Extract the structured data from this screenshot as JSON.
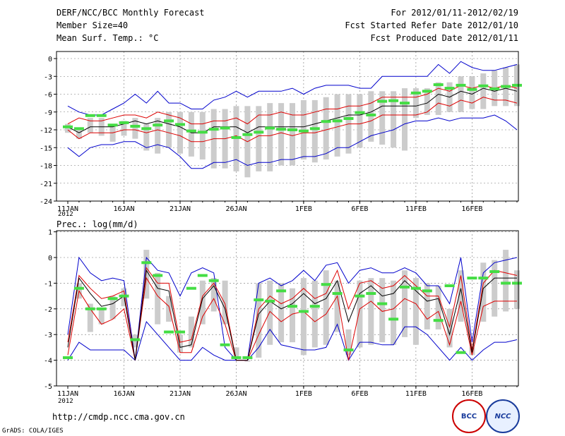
{
  "header": {
    "left": [
      "DERF/NCC/BCC Monthly Forecast",
      "Member Size=40",
      "Mean Surf. Temp.: °C"
    ],
    "right": [
      "For 2012/01/11-2012/02/19",
      "Fcst Started Refer Date 2012/01/10",
      "Fcst Produced Date 2012/01/11"
    ]
  },
  "footer": {
    "url": "http://cmdp.ncc.cma.gov.cn",
    "credit": "GrADS: COLA/IGES",
    "logo_bcc": "BCC",
    "logo_ncc": "NCC"
  },
  "colors": {
    "envelope": "#0000cc",
    "band": "#dd0000",
    "mean": "#000000",
    "box": "#cccccc",
    "obs": "#44dd44"
  },
  "chart_data": [
    {
      "type": "line",
      "name": "temperature",
      "title": "Mean Surf. Temp.: °C",
      "ylim": [
        -24,
        1
      ],
      "yticks": [
        0,
        -3,
        -6,
        -9,
        -12,
        -15,
        -18,
        -21,
        -24
      ],
      "xticks": [
        {
          "day": 0,
          "label": "11JAN"
        },
        {
          "day": 5,
          "label": "16JAN"
        },
        {
          "day": 10,
          "label": "21JAN"
        },
        {
          "day": 15,
          "label": "26JAN"
        },
        {
          "day": 21,
          "label": "1FEB"
        },
        {
          "day": 26,
          "label": "6FEB"
        },
        {
          "day": 31,
          "label": "11FEB"
        },
        {
          "day": 36,
          "label": "16FEB"
        }
      ],
      "year_label": "2012",
      "max": [
        -8,
        -9,
        -9.5,
        -9.5,
        -8.5,
        -7.5,
        -6,
        -7.5,
        -5.5,
        -7.5,
        -7.5,
        -8.5,
        -8.5,
        -7,
        -6.5,
        -5.5,
        -6.5,
        -5.5,
        -5.5,
        -5.5,
        -5,
        -6,
        -5,
        -4.5,
        -4.5,
        -4.5,
        -5,
        -5,
        -3,
        -3,
        -3,
        -3,
        -3,
        -1,
        -2.5,
        -0.5,
        -1.5,
        -2,
        -2,
        -1.5,
        -1
      ],
      "upper": [
        -11,
        -10,
        -10.5,
        -10.5,
        -10,
        -9.5,
        -9.5,
        -10,
        -9,
        -9.5,
        -10,
        -11,
        -11,
        -10.5,
        -10.5,
        -10,
        -11,
        -9.5,
        -9.5,
        -9,
        -9.5,
        -9.5,
        -9,
        -8.5,
        -8.5,
        -8,
        -8,
        -7.5,
        -6.5,
        -6.5,
        -6.5,
        -6.5,
        -6,
        -5,
        -5.5,
        -4.5,
        -5,
        -4.5,
        -5,
        -4.5,
        -5
      ],
      "mean": [
        -11.5,
        -12.5,
        -11.5,
        -11.5,
        -11.5,
        -11,
        -10.5,
        -11,
        -10.5,
        -11,
        -11.5,
        -12.5,
        -12.5,
        -11.5,
        -11.5,
        -11.5,
        -12.5,
        -11.5,
        -11.5,
        -11.5,
        -11.5,
        -11.5,
        -11,
        -10.5,
        -10,
        -9.5,
        -9.5,
        -9,
        -8,
        -8,
        -8,
        -8,
        -7.5,
        -6,
        -6.5,
        -5.5,
        -6,
        -5,
        -5.5,
        -5,
        -5.5
      ],
      "lower": [
        -12,
        -13.5,
        -12.5,
        -12.5,
        -12.5,
        -12,
        -12,
        -12.5,
        -12,
        -12.5,
        -13,
        -14,
        -14,
        -13.5,
        -13.5,
        -13,
        -14,
        -13,
        -13,
        -12.5,
        -13,
        -12.5,
        -12.5,
        -12,
        -11.5,
        -11,
        -11,
        -10.5,
        -9.5,
        -9.5,
        -9.5,
        -9.5,
        -9,
        -7.5,
        -8,
        -7,
        -7.5,
        -6.5,
        -7,
        -7,
        -7.5
      ],
      "min": [
        -15,
        -16.5,
        -15,
        -14.5,
        -14.5,
        -14,
        -14,
        -15,
        -14.5,
        -15,
        -16.5,
        -18.5,
        -18.5,
        -17.5,
        -17.5,
        -17,
        -18,
        -17.5,
        -17.5,
        -17,
        -17,
        -16.5,
        -16.5,
        -16,
        -15,
        -15,
        -14,
        -13,
        -12.5,
        -12,
        -11,
        -10.5,
        -10.5,
        -10,
        -10.5,
        -10,
        -10,
        -10,
        -9.5,
        -10.5,
        -12
      ],
      "box_top": [
        -11,
        -12,
        -10,
        -10,
        -11,
        -10.5,
        -10,
        -11,
        -10,
        -9,
        -9,
        -9,
        -9,
        -8.5,
        -8.5,
        -8,
        -8,
        -8,
        -7.5,
        -7.5,
        -7.5,
        -7,
        -7,
        -6.5,
        -6,
        -6,
        -6,
        -5.5,
        -5.5,
        -5.5,
        -5,
        -5,
        -5,
        -4,
        -4,
        -3,
        -3,
        -2.5,
        -2,
        -1.5,
        -1
      ],
      "box_bottom": [
        -12.5,
        -13.5,
        -12.5,
        -13,
        -14,
        -13,
        -13.5,
        -15.5,
        -16,
        -15,
        -16,
        -16.5,
        -17,
        -18.5,
        -18.5,
        -19,
        -20,
        -19,
        -19,
        -18,
        -18,
        -17,
        -17.5,
        -17,
        -16.5,
        -16,
        -15,
        -14,
        -14.5,
        -15,
        -15.5,
        -10,
        -9.5,
        -9.5,
        -9,
        -9,
        -8.5,
        -8.5,
        -8,
        -8,
        -8
      ],
      "obs": [
        -11.5,
        -11.8,
        -9.6,
        -9.6,
        -11.2,
        -10.8,
        -11.4,
        -11.8,
        -11.2,
        -10.5,
        -11.1,
        -12.2,
        -12.4,
        -11.9,
        -11.7,
        -13.3,
        -12.8,
        -12.4,
        -11.7,
        -11.9,
        -12,
        -12.2,
        -11.8,
        -10.6,
        -10.5,
        -10.1,
        -9.1,
        -9.5,
        -7.2,
        -7.1,
        -7.5,
        -5.8,
        -5.5,
        -4.4,
        -5,
        -4.5,
        -5.2,
        -4.6,
        -5.1,
        -4.7,
        -4.5
      ]
    },
    {
      "type": "line",
      "name": "precipitation",
      "title": "Prec.: log(mm/d)",
      "ylim": [
        -5,
        1
      ],
      "yticks": [
        1,
        0,
        -1,
        -2,
        -3,
        -4,
        -5
      ],
      "xticks": [
        {
          "day": 0,
          "label": "11JAN"
        },
        {
          "day": 5,
          "label": "16JAN"
        },
        {
          "day": 10,
          "label": "21JAN"
        },
        {
          "day": 15,
          "label": "26JAN"
        },
        {
          "day": 21,
          "label": "1FEB"
        },
        {
          "day": 26,
          "label": "6FEB"
        },
        {
          "day": 31,
          "label": "11FEB"
        },
        {
          "day": 36,
          "label": "16FEB"
        }
      ],
      "year_label": "2012",
      "max": [
        -3,
        0,
        -0.6,
        -0.9,
        -0.8,
        -0.9,
        -4,
        0,
        -0.5,
        -0.6,
        -1.5,
        -0.6,
        -0.4,
        -0.6,
        -3.5,
        -4,
        -4,
        -1,
        -0.8,
        -1.1,
        -0.9,
        -0.5,
        -0.9,
        -0.3,
        -0.2,
        -1,
        -0.5,
        -0.4,
        -0.6,
        -0.6,
        -0.4,
        -0.6,
        -1.1,
        -1.1,
        -1.8,
        0,
        -3.3,
        -0.6,
        -0.2,
        -0.1,
        0
      ],
      "upper": [
        -3.3,
        -0.7,
        -1.2,
        -1.6,
        -1.5,
        -1.3,
        -4,
        -0.4,
        -1,
        -1,
        -3.3,
        -3.2,
        -1.5,
        -1,
        -1.8,
        -4,
        -4,
        -2,
        -1.5,
        -1.8,
        -1.6,
        -1.2,
        -1.6,
        -1.4,
        -0.5,
        -2,
        -1,
        -0.9,
        -1.2,
        -1.1,
        -0.7,
        -1.1,
        -1.5,
        -1.5,
        -2.7,
        -0.7,
        -3.6,
        -1,
        -0.5,
        -0.6,
        -0.7
      ],
      "mean": [
        -3.5,
        -0.8,
        -1.4,
        -1.9,
        -1.8,
        -1.5,
        -4,
        -0.5,
        -1.2,
        -1.3,
        -3.5,
        -3.4,
        -1.6,
        -1.1,
        -2,
        -4,
        -4,
        -2.2,
        -1.7,
        -2,
        -1.8,
        -1.4,
        -1.8,
        -1.6,
        -0.9,
        -2.5,
        -1.4,
        -1.1,
        -1.5,
        -1.4,
        -0.9,
        -1.3,
        -1.7,
        -1.6,
        -3,
        -1.2,
        -3.7,
        -1.2,
        -0.8,
        -0.8,
        -0.8
      ],
      "lower": [
        -3.8,
        -1.3,
        -2,
        -2.6,
        -2.4,
        -2,
        -4,
        -0.8,
        -1.5,
        -1.9,
        -3.7,
        -3.7,
        -2.3,
        -1.6,
        -2.6,
        -4,
        -4,
        -3,
        -2.1,
        -2.5,
        -2.2,
        -2.1,
        -2.5,
        -2.2,
        -1.5,
        -4,
        -2,
        -1.7,
        -2.1,
        -2,
        -1.6,
        -1.8,
        -2.4,
        -2.1,
        -3.4,
        -1.7,
        -3.8,
        -1.9,
        -1.7,
        -1.7,
        -1.7
      ],
      "min": [
        -4,
        -3.3,
        -3.6,
        -3.6,
        -3.6,
        -3.6,
        -4,
        -2.5,
        -3,
        -3.5,
        -4,
        -4,
        -3.5,
        -3.8,
        -4,
        -4,
        -4,
        -3.5,
        -2.8,
        -3.4,
        -3.5,
        -3.6,
        -3.6,
        -3.5,
        -2.6,
        -4,
        -3.3,
        -3.3,
        -3.4,
        -3.4,
        -2.7,
        -2.7,
        -3,
        -3.5,
        -4,
        -3.5,
        -4,
        -3.6,
        -3.3,
        -3.3,
        -3.2
      ],
      "box_top": [
        -3.9,
        -1,
        -1.8,
        -2,
        -1.5,
        -1.2,
        -3,
        0.3,
        -0.6,
        -1.5,
        -3,
        -2.3,
        -0.9,
        -0.8,
        -0.9,
        -3.5,
        -4,
        -1,
        -0.9,
        -1,
        -1.2,
        -0.8,
        -0.9,
        -0.5,
        -0.9,
        -2.8,
        -0.9,
        -0.8,
        -0.8,
        -0.9,
        -0.5,
        -0.8,
        -1,
        -1.1,
        -2,
        -0.5,
        -3.5,
        -0.2,
        -0.1,
        0.3,
        -0.5
      ],
      "box_bottom": [
        -3.95,
        -1.6,
        -2.9,
        -2.6,
        -2.4,
        -1.9,
        -3.5,
        -1.6,
        -2.6,
        -2.5,
        -3.7,
        -3.5,
        -2.6,
        -2.1,
        -2.6,
        -3.9,
        -4,
        -3.9,
        -3.4,
        -3.3,
        -3.3,
        -3.8,
        -3.5,
        -3.4,
        -2.9,
        -3.8,
        -3.5,
        -3.4,
        -3.3,
        -3.4,
        -3.1,
        -3.4,
        -2.8,
        -2.8,
        -3.5,
        -2.5,
        -3.8,
        -2.5,
        -2.3,
        -2.1,
        -2
      ],
      "obs": [
        -3.9,
        -1.2,
        -2,
        -2,
        -1.6,
        -1.5,
        -3.2,
        -0.2,
        -0.7,
        -2.9,
        -2.9,
        -1.2,
        -0.7,
        -0.9,
        -3.4,
        -3.9,
        -3.9,
        -1.65,
        -1.7,
        -1.3,
        -1.9,
        -2.1,
        -1.9,
        -1.05,
        -1.4,
        -3.6,
        -1.5,
        -1.4,
        -1.8,
        -2.4,
        -1.15,
        -1.2,
        -1.3,
        -2.45,
        -1.1,
        -3.7,
        -0.8,
        -0.8,
        -0.55,
        -1,
        -1
      ]
    }
  ]
}
